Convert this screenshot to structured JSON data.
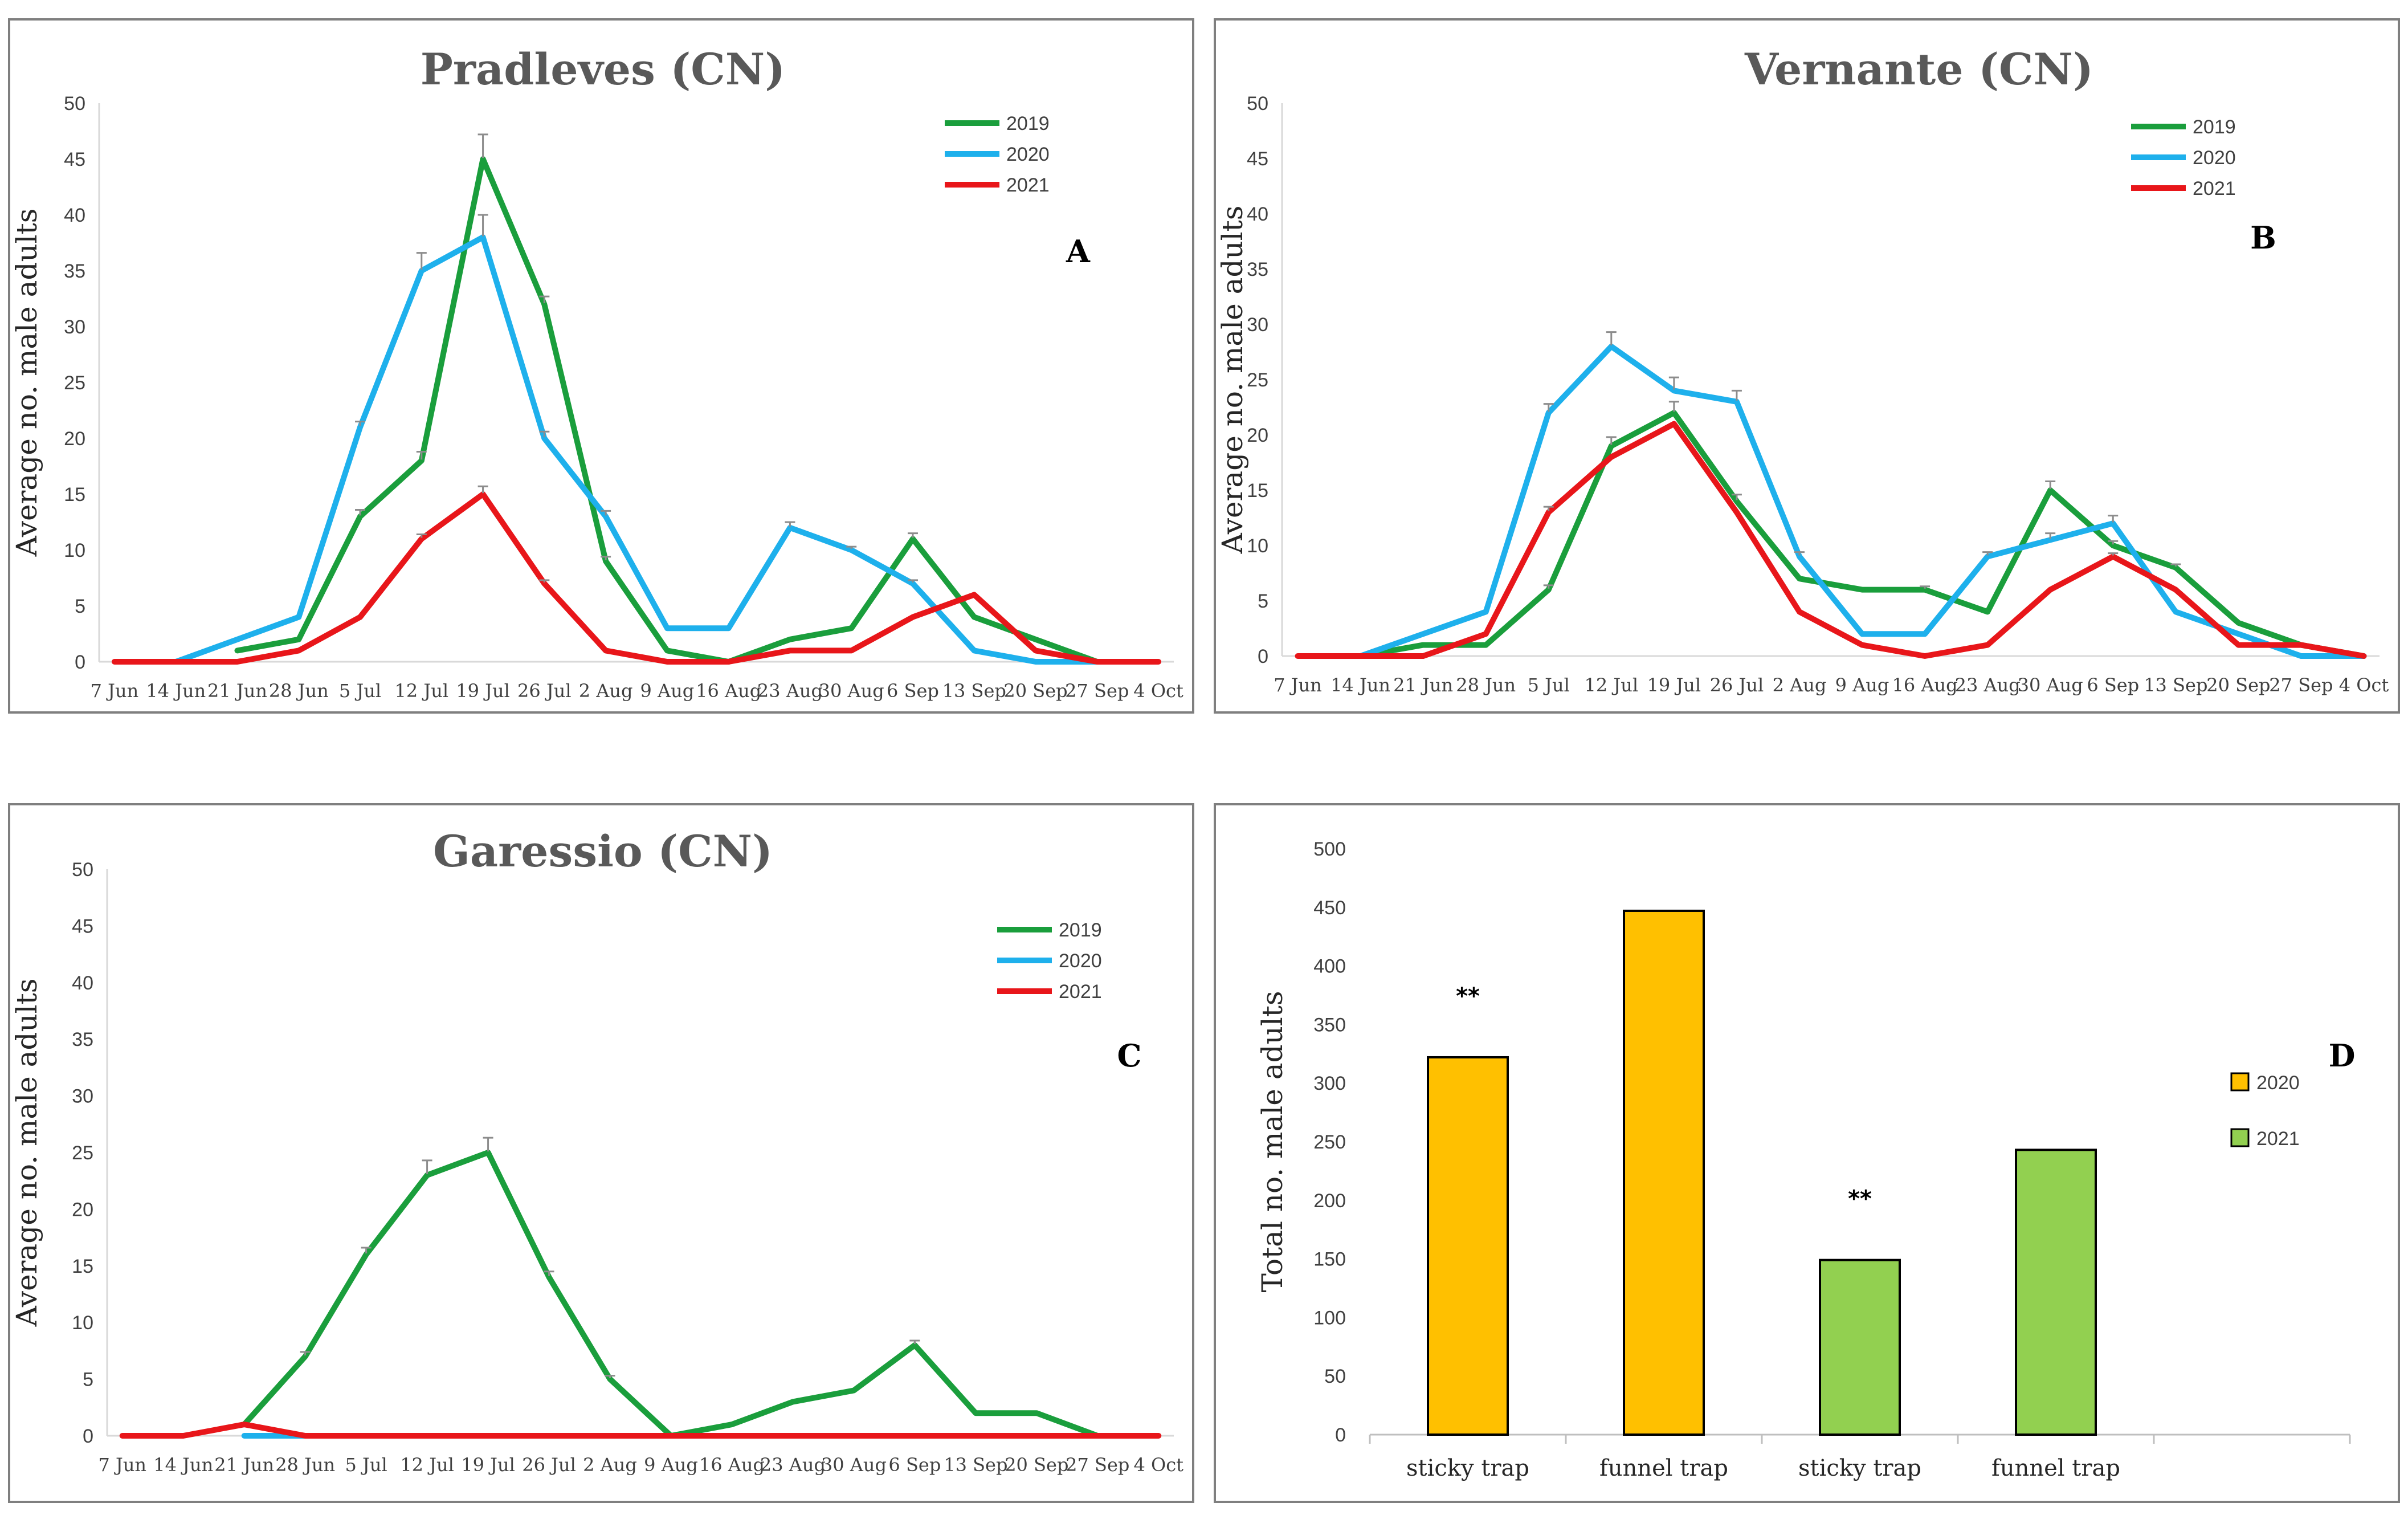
{
  "colors": {
    "2019": "#1a9e3c",
    "2020": "#1eb0ec",
    "2021": "#e8161a",
    "bar_2020": "#ffc000",
    "bar_2021": "#92d050"
  },
  "chart_data": [
    {
      "id": "A",
      "type": "line",
      "title": "Pradleves (CN)",
      "panel_label": "A",
      "ylabel": "Average no. male adults",
      "xlabel": "",
      "ylim": [
        0,
        50
      ],
      "yticks": [
        0,
        5,
        10,
        15,
        20,
        25,
        30,
        35,
        40,
        45,
        50
      ],
      "categories": [
        "7 Jun",
        "14 Jun",
        "21 Jun",
        "28 Jun",
        "5 Jul",
        "12 Jul",
        "19 Jul",
        "26 Jul",
        "2 Aug",
        "9 Aug",
        "16 Aug",
        "23 Aug",
        "30 Aug",
        "6 Sep",
        "13 Sep",
        "20 Sep",
        "27 Sep",
        "4 Oct"
      ],
      "legend": "top-right",
      "series": [
        {
          "name": "2019",
          "values": [
            null,
            null,
            1,
            2,
            13,
            18,
            45,
            32,
            9,
            1,
            0,
            2,
            3,
            11,
            4,
            2,
            0,
            null
          ],
          "errors": [
            0,
            0,
            0,
            0,
            0.6,
            0.8,
            2.2,
            0.7,
            0.4,
            0,
            0,
            0,
            0,
            0.5,
            0,
            0,
            0,
            0
          ]
        },
        {
          "name": "2020",
          "values": [
            null,
            0,
            2,
            4,
            21,
            35,
            38,
            20,
            13,
            3,
            3,
            12,
            10,
            7,
            1,
            0,
            0,
            null
          ],
          "errors": [
            0,
            0,
            0,
            0,
            0.5,
            1.6,
            2,
            0.6,
            0.5,
            0,
            0,
            0.5,
            0.3,
            0.3,
            0,
            0,
            0,
            0
          ]
        },
        {
          "name": "2021",
          "values": [
            0,
            0,
            0,
            1,
            4,
            11,
            15,
            7,
            1,
            0,
            0,
            1,
            1,
            4,
            6,
            1,
            0,
            0
          ],
          "errors": [
            0,
            0,
            0,
            0,
            0,
            0.4,
            0.7,
            0.3,
            0,
            0,
            0,
            0,
            0,
            0,
            0,
            0,
            0,
            0
          ]
        }
      ]
    },
    {
      "id": "B",
      "type": "line",
      "title": "Vernante (CN)",
      "panel_label": "B",
      "ylabel": "Average no. male adults",
      "xlabel": "",
      "ylim": [
        0,
        50
      ],
      "yticks": [
        0,
        5,
        10,
        15,
        20,
        25,
        30,
        35,
        40,
        45,
        50
      ],
      "categories": [
        "7 Jun",
        "14 Jun",
        "21 Jun",
        "28 Jun",
        "5 Jul",
        "12 Jul",
        "19 Jul",
        "26 Jul",
        "2 Aug",
        "9 Aug",
        "16 Aug",
        "23 Aug",
        "30 Aug",
        "6 Sep",
        "13 Sep",
        "20 Sep",
        "27 Sep",
        "4 Oct"
      ],
      "legend": "top-right",
      "series": [
        {
          "name": "2019",
          "values": [
            null,
            0,
            1,
            1,
            6,
            19,
            22,
            14,
            7,
            6,
            6,
            4,
            15,
            10,
            8,
            3,
            1,
            0
          ],
          "errors": [
            0,
            0,
            0,
            0,
            0.4,
            0.8,
            1,
            0.6,
            0,
            0,
            0.3,
            0,
            0.8,
            0.4,
            0.3,
            0,
            0,
            0
          ]
        },
        {
          "name": "2020",
          "values": [
            null,
            0,
            2,
            4,
            22,
            28,
            24,
            23,
            9,
            2,
            2,
            9,
            10.5,
            12,
            4,
            2,
            0,
            0
          ],
          "errors": [
            0,
            0,
            0,
            0,
            0.8,
            1.3,
            1.2,
            1,
            0.4,
            0,
            0,
            0.4,
            0.6,
            0.7,
            0,
            0,
            0,
            0
          ]
        },
        {
          "name": "2021",
          "values": [
            0,
            0,
            0,
            2,
            13,
            18,
            21,
            13,
            4,
            1,
            0,
            1,
            6,
            9,
            6,
            1,
            1,
            0
          ],
          "errors": [
            0,
            0,
            0,
            0,
            0.5,
            0,
            0,
            0,
            0,
            0,
            0,
            0,
            0,
            0.3,
            0,
            0,
            0,
            0
          ]
        }
      ]
    },
    {
      "id": "C",
      "type": "line",
      "title": "Garessio (CN)",
      "panel_label": "C",
      "ylabel": "Average no. male adults",
      "xlabel": "",
      "ylim": [
        0,
        50
      ],
      "yticks": [
        0,
        5,
        10,
        15,
        20,
        25,
        30,
        35,
        40,
        45,
        50
      ],
      "categories": [
        "7 Jun",
        "14 Jun",
        "21 Jun",
        "28 Jun",
        "5 Jul",
        "12 Jul",
        "19 Jul",
        "26 Jul",
        "2 Aug",
        "9 Aug",
        "16 Aug",
        "23 Aug",
        "30 Aug",
        "6 Sep",
        "13 Sep",
        "20 Sep",
        "27 Sep",
        "4 Oct"
      ],
      "legend": "top-right",
      "series": [
        {
          "name": "2019",
          "values": [
            null,
            null,
            1,
            7,
            16,
            23,
            25,
            14,
            5,
            0,
            1,
            3,
            4,
            8,
            2,
            2,
            0,
            null
          ],
          "errors": [
            0,
            0,
            0,
            0.4,
            0.6,
            1.3,
            1.3,
            0.5,
            0.3,
            0,
            0,
            0,
            0,
            0.4,
            0,
            0,
            0,
            0
          ]
        },
        {
          "name": "2020",
          "values": [
            null,
            null,
            0,
            0,
            null,
            null,
            null,
            null,
            null,
            null,
            null,
            null,
            null,
            null,
            null,
            null,
            null,
            null
          ],
          "errors": [
            0,
            0,
            0,
            0,
            0,
            0,
            0,
            0,
            0,
            0,
            0,
            0,
            0,
            0,
            0,
            0,
            0,
            0
          ]
        },
        {
          "name": "2021",
          "values": [
            0,
            0,
            1,
            0,
            0,
            0,
            0,
            0,
            0,
            0,
            0,
            0,
            0,
            0,
            0,
            0,
            0,
            0
          ],
          "errors": [
            0,
            0,
            0,
            0,
            0,
            0,
            0,
            0,
            0,
            0,
            0,
            0,
            0,
            0,
            0,
            0,
            0,
            0
          ]
        }
      ]
    },
    {
      "id": "D",
      "type": "bar",
      "title": "",
      "panel_label": "D",
      "ylabel": "Total no. male adults",
      "xlabel": "",
      "ylim": [
        0,
        500
      ],
      "yticks": [
        0,
        50,
        100,
        150,
        200,
        250,
        300,
        350,
        400,
        450,
        500
      ],
      "categories": [
        "sticky trap",
        "funnel trap",
        "sticky trap",
        "funnel trap"
      ],
      "series": [
        {
          "name": "2020",
          "values": [
            322,
            447,
            null,
            null
          ]
        },
        {
          "name": "2021",
          "values": [
            null,
            null,
            149,
            243
          ]
        }
      ],
      "annotations": [
        "**",
        null,
        "**",
        null
      ],
      "legend": "right"
    }
  ]
}
